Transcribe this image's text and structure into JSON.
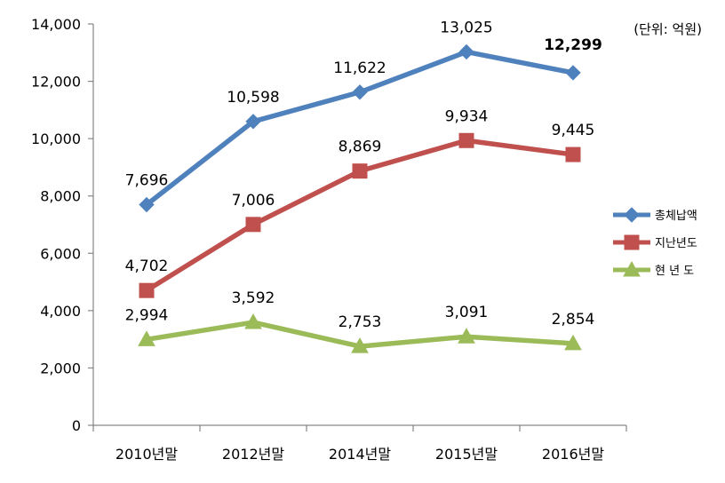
{
  "chart_data": {
    "type": "line",
    "unit_note": "(단위: 억원)",
    "categories": [
      "2010년말",
      "2012년말",
      "2014년말",
      "2015년말",
      "2016년말"
    ],
    "ylim": [
      0,
      14000
    ],
    "ytick_step": 2000,
    "ytick_labels": [
      "0",
      "2,000",
      "4,000",
      "6,000",
      "8,000",
      "10,000",
      "12,000",
      "14,000"
    ],
    "grid": false,
    "legend_position": "right",
    "highlight": {
      "series": 0,
      "index": 4,
      "color": "#ff0000"
    },
    "series": [
      {
        "name": "총체납액",
        "color": "#4f81bd",
        "marker": "diamond",
        "values": [
          7696,
          10598,
          11622,
          13025,
          12299
        ],
        "labels": [
          "7,696",
          "10,598",
          "11,622",
          "13,025",
          "12,299"
        ]
      },
      {
        "name": "지난년도",
        "color": "#c0504d",
        "marker": "square",
        "values": [
          4702,
          7006,
          8869,
          9934,
          9445
        ],
        "labels": [
          "4,702",
          "7,006",
          "8,869",
          "9,934",
          "9,445"
        ]
      },
      {
        "name": "현 년 도",
        "color": "#9bbb59",
        "marker": "triangle",
        "values": [
          2994,
          3592,
          2753,
          3091,
          2854
        ],
        "labels": [
          "2,994",
          "3,592",
          "2,753",
          "3,091",
          "2,854"
        ]
      }
    ]
  }
}
